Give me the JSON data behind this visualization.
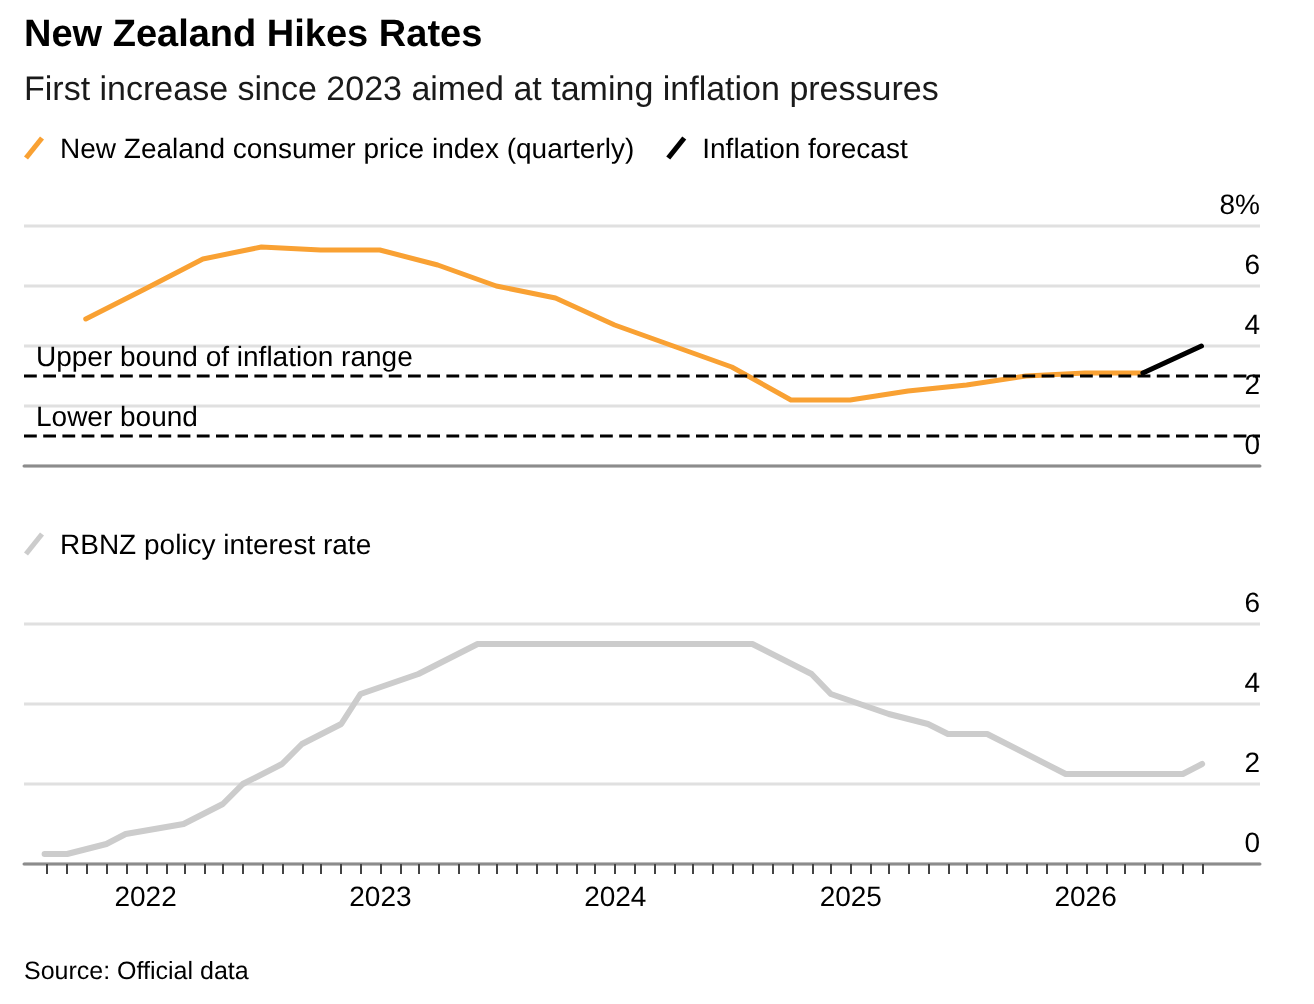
{
  "chart_data": [
    {
      "type": "line",
      "title": "New Zealand Hikes Rates",
      "subtitle": "First increase since 2023 aimed at taming inflation pressures",
      "series": [
        {
          "name": "New Zealand consumer price index (quarterly)",
          "color": "#f9a133",
          "x": [
            "2021-09-30",
            "2021-12-31",
            "2022-03-31",
            "2022-06-30",
            "2022-09-30",
            "2022-12-31",
            "2023-03-31",
            "2023-06-30",
            "2023-09-30",
            "2023-12-31",
            "2024-03-31",
            "2024-06-30",
            "2024-09-30",
            "2024-12-31",
            "2025-03-31",
            "2025-06-30",
            "2025-09-30",
            "2025-12-31",
            "2026-03-31"
          ],
          "values": [
            4.9,
            5.9,
            6.9,
            7.3,
            7.2,
            7.2,
            6.7,
            6.0,
            5.6,
            4.7,
            4.0,
            3.3,
            2.2,
            2.2,
            2.5,
            2.7,
            3.0,
            3.1,
            3.1
          ]
        },
        {
          "name": "Inflation forecast",
          "color": "#000000",
          "x": [
            "2026-03-31",
            "2026-06-30"
          ],
          "values": [
            3.1,
            4.0
          ]
        }
      ],
      "xlim": [
        "2021-06-26",
        "2026-09-29"
      ],
      "ylim": [
        0,
        8
      ],
      "yticks": [
        0,
        2,
        4,
        6,
        {
          "value": 8,
          "label": "8%"
        }
      ],
      "tick_labels": "y",
      "grid": "y",
      "legend": "top left",
      "marker": "none",
      "ref_lines": [
        {
          "axis": "y",
          "value": 3,
          "label": "Upper bound of inflation range",
          "color": "#000000",
          "line_style": "dashed"
        },
        {
          "axis": "y",
          "value": 1,
          "label": "Lower bound",
          "color": "#000000",
          "line_style": "dashed"
        }
      ]
    },
    {
      "type": "line",
      "series": [
        {
          "name": "RBNZ policy interest rate",
          "color": "#cccccc",
          "x": [
            "2021-07-28",
            "2021-09-01",
            "2021-11-01",
            "2021-12-01",
            "2022-03-01",
            "2022-05-01",
            "2022-06-01",
            "2022-08-01",
            "2022-09-01",
            "2022-11-01",
            "2022-12-01",
            "2023-03-01",
            "2023-06-01",
            "2024-08-01",
            "2024-11-01",
            "2024-12-01",
            "2025-03-01",
            "2025-05-01",
            "2025-06-01",
            "2025-08-01",
            "2025-12-01",
            "2026-06-01",
            "2026-07-01"
          ],
          "values": [
            0.25,
            0.25,
            0.5,
            0.75,
            1.0,
            1.5,
            2.0,
            2.5,
            3.0,
            3.5,
            4.25,
            4.75,
            5.5,
            5.5,
            4.75,
            4.25,
            3.75,
            3.5,
            3.25,
            3.25,
            2.25,
            2.25,
            2.5
          ]
        }
      ],
      "xlim": [
        "2021-06-26",
        "2026-09-29"
      ],
      "ylim": [
        0,
        6
      ],
      "yticks": [
        0,
        2,
        4,
        6
      ],
      "xticks": [
        {
          "value": "2021-08",
          "label": null
        },
        {
          "value": "2021-09",
          "label": null
        },
        {
          "value": "2021-10",
          "label": null
        },
        {
          "value": "2021-11",
          "label": null
        },
        {
          "value": "2021-12",
          "label": null
        },
        {
          "value": "2022-01",
          "label": "2022"
        },
        {
          "value": "2022-02",
          "label": null
        },
        {
          "value": "2022-03",
          "label": null
        },
        {
          "value": "2022-04",
          "label": null
        },
        {
          "value": "2022-05",
          "label": null
        },
        {
          "value": "2022-06",
          "label": null
        },
        {
          "value": "2022-07",
          "label": null
        },
        {
          "value": "2022-08",
          "label": null
        },
        {
          "value": "2022-09",
          "label": null
        },
        {
          "value": "2022-10",
          "label": null
        },
        {
          "value": "2022-11",
          "label": null
        },
        {
          "value": "2022-12",
          "label": null
        },
        {
          "value": "2023-01",
          "label": "2023"
        },
        {
          "value": "2023-02",
          "label": null
        },
        {
          "value": "2023-03",
          "label": null
        },
        {
          "value": "2023-04",
          "label": null
        },
        {
          "value": "2023-05",
          "label": null
        },
        {
          "value": "2023-06",
          "label": null
        },
        {
          "value": "2023-07",
          "label": null
        },
        {
          "value": "2023-08",
          "label": null
        },
        {
          "value": "2023-09",
          "label": null
        },
        {
          "value": "2023-10",
          "label": null
        },
        {
          "value": "2023-11",
          "label": null
        },
        {
          "value": "2023-12",
          "label": null
        },
        {
          "value": "2024-01",
          "label": "2024"
        },
        {
          "value": "2024-02",
          "label": null
        },
        {
          "value": "2024-03",
          "label": null
        },
        {
          "value": "2024-04",
          "label": null
        },
        {
          "value": "2024-05",
          "label": null
        },
        {
          "value": "2024-06",
          "label": null
        },
        {
          "value": "2024-07",
          "label": null
        },
        {
          "value": "2024-08",
          "label": null
        },
        {
          "value": "2024-09",
          "label": null
        },
        {
          "value": "2024-10",
          "label": null
        },
        {
          "value": "2024-11",
          "label": null
        },
        {
          "value": "2024-12",
          "label": null
        },
        {
          "value": "2025-01",
          "label": "2025"
        },
        {
          "value": "2025-02",
          "label": null
        },
        {
          "value": "2025-03",
          "label": null
        },
        {
          "value": "2025-04",
          "label": null
        },
        {
          "value": "2025-05",
          "label": null
        },
        {
          "value": "2025-06",
          "label": null
        },
        {
          "value": "2025-07",
          "label": null
        },
        {
          "value": "2025-08",
          "label": null
        },
        {
          "value": "2025-09",
          "label": null
        },
        {
          "value": "2025-10",
          "label": null
        },
        {
          "value": "2025-11",
          "label": null
        },
        {
          "value": "2025-12",
          "label": null
        },
        {
          "value": "2026-01",
          "label": "2026"
        },
        {
          "value": "2026-02",
          "label": null
        },
        {
          "value": "2026-03",
          "label": null
        },
        {
          "value": "2026-04",
          "label": null
        },
        {
          "value": "2026-05",
          "label": null
        },
        {
          "value": "2026-06",
          "label": null
        },
        {
          "value": "2026-07",
          "label": null
        }
      ],
      "grid": "y",
      "legend": "top left",
      "marker": "none",
      "annotations": [
        "Source: Official data"
      ]
    }
  ]
}
